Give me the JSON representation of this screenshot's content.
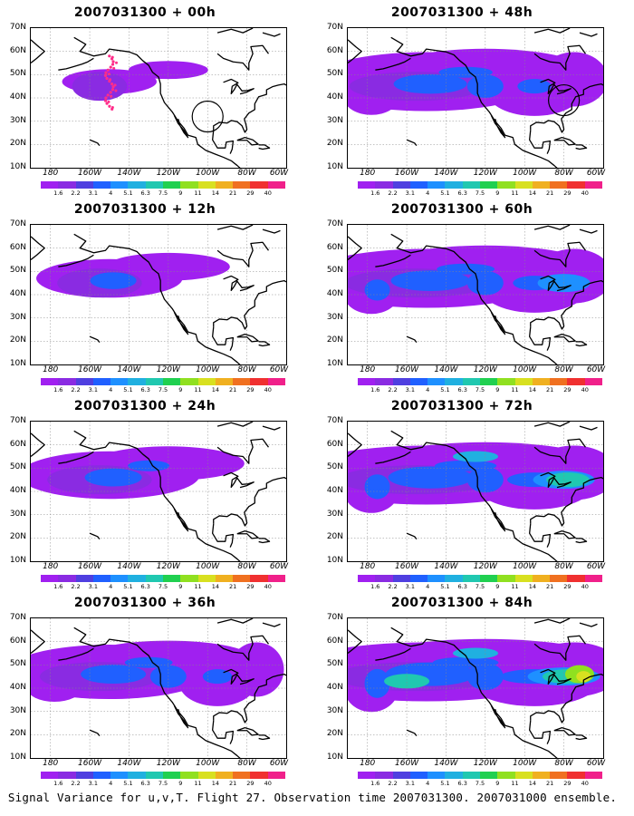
{
  "panels": [
    {
      "title": "2007031300 + 00h",
      "intensity": 0.55,
      "spread": 0.55,
      "track": true,
      "circle": true
    },
    {
      "title": "2007031300 + 12h",
      "intensity": 0.75,
      "spread": 0.85,
      "track": false,
      "circle": false
    },
    {
      "title": "2007031300 + 24h",
      "intensity": 0.95,
      "spread": 1.05,
      "track": false,
      "circle": false
    },
    {
      "title": "2007031300 + 36h",
      "intensity": 1.15,
      "spread": 1.2,
      "track": false,
      "circle": false
    },
    {
      "title": "2007031300 + 48h",
      "intensity": 1.25,
      "spread": 1.35,
      "track": false,
      "circle": true
    },
    {
      "title": "2007031300 + 60h",
      "intensity": 1.45,
      "spread": 1.45,
      "track": false,
      "circle": false
    },
    {
      "title": "2007031300 + 72h",
      "intensity": 1.7,
      "spread": 1.55,
      "track": false,
      "circle": false
    },
    {
      "title": "2007031300 + 84h",
      "intensity": 2.0,
      "spread": 1.65,
      "track": false,
      "circle": false
    }
  ],
  "lat_labels": [
    "70N",
    "60N",
    "50N",
    "40N",
    "30N",
    "20N",
    "10N"
  ],
  "lon_labels": [
    "180",
    "160W",
    "140W",
    "120W",
    "100W",
    "80W",
    "60W"
  ],
  "colorbar": {
    "labels": [
      "1.6",
      "2.2",
      "3.1",
      "4",
      "5.1",
      "6.3",
      "7.5",
      "9",
      "11",
      "14",
      "21",
      "29",
      "40"
    ],
    "colors": [
      "#a020f0",
      "#8a2be2",
      "#4f3fe0",
      "#2060ff",
      "#1e90ff",
      "#20b0e0",
      "#20c8b0",
      "#20d050",
      "#90e020",
      "#d8e020",
      "#f0b020",
      "#f07020",
      "#f03030",
      "#f0208a"
    ]
  },
  "caption": "Signal Variance for u,v,T. Flight 27. Observation time 2007031300. 2007031000 ensemble."
}
